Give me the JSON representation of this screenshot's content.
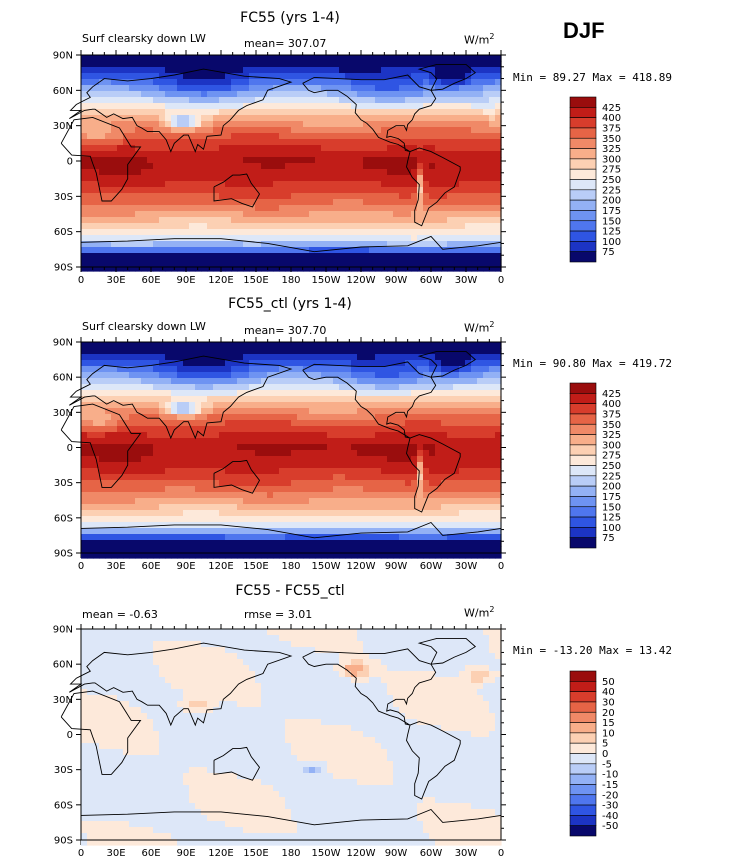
{
  "season": "DJF",
  "colors": {
    "abs_scale": [
      "#08086b",
      "#1c34c4",
      "#2f55e3",
      "#4f76ee",
      "#6e93f2",
      "#93b1f5",
      "#b9cdf7",
      "#dde7f8",
      "#fde9da",
      "#fcd0b3",
      "#f8ae8a",
      "#f08967",
      "#e66446",
      "#d83d2c",
      "#c11d18",
      "#9a0d0d"
    ],
    "diff_scale": [
      "#08086b",
      "#1c34c4",
      "#2f55e3",
      "#4f76ee",
      "#6e93f2",
      "#93b1f5",
      "#b9cdf7",
      "#dde7f8",
      "#fde9da",
      "#fcd0b3",
      "#f8ae8a",
      "#f08967",
      "#e66446",
      "#d83d2c",
      "#c11d18",
      "#9a0d0d"
    ]
  },
  "panels": [
    {
      "title": "FC55 (yrs 1-4)",
      "left_label": "Surf clearsky down LW",
      "mean_text": "mean= 307.07",
      "units_text": "W/m",
      "units_exp": "2",
      "minmax_text": "Min =  89.27 Max = 418.89",
      "colorbar_labels": [
        "425",
        "400",
        "375",
        "350",
        "325",
        "300",
        "275",
        "250",
        "225",
        "200",
        "175",
        "150",
        "125",
        "100",
        "75"
      ]
    },
    {
      "title": "FC55_ctl (yrs 1-4)",
      "left_label": "Surf clearsky down LW",
      "mean_text": "mean= 307.70",
      "units_text": "W/m",
      "units_exp": "2",
      "minmax_text": "Min =  90.80 Max = 419.72",
      "colorbar_labels": [
        "425",
        "400",
        "375",
        "350",
        "325",
        "300",
        "275",
        "250",
        "225",
        "200",
        "175",
        "150",
        "125",
        "100",
        "75"
      ]
    },
    {
      "title": "FC55 - FC55_ctl",
      "left_label": "mean =   -0.63",
      "mean_text": "rmse =    3.01",
      "units_text": "W/m",
      "units_exp": "2",
      "minmax_text": "Min = -13.20 Max =  13.42",
      "colorbar_labels": [
        "50",
        "40",
        "30",
        "20",
        "15",
        "10",
        "5",
        "0",
        "-5",
        "-10",
        "-15",
        "-20",
        "-30",
        "-40",
        "-50"
      ]
    }
  ],
  "axes": {
    "lat_labels": [
      "90N",
      "60N",
      "30N",
      "0",
      "30S",
      "60S",
      "90S"
    ],
    "lon_labels": [
      "0",
      "30E",
      "60E",
      "90E",
      "120E",
      "150E",
      "180",
      "150W",
      "120W",
      "90W",
      "60W",
      "30W",
      "0"
    ]
  }
}
